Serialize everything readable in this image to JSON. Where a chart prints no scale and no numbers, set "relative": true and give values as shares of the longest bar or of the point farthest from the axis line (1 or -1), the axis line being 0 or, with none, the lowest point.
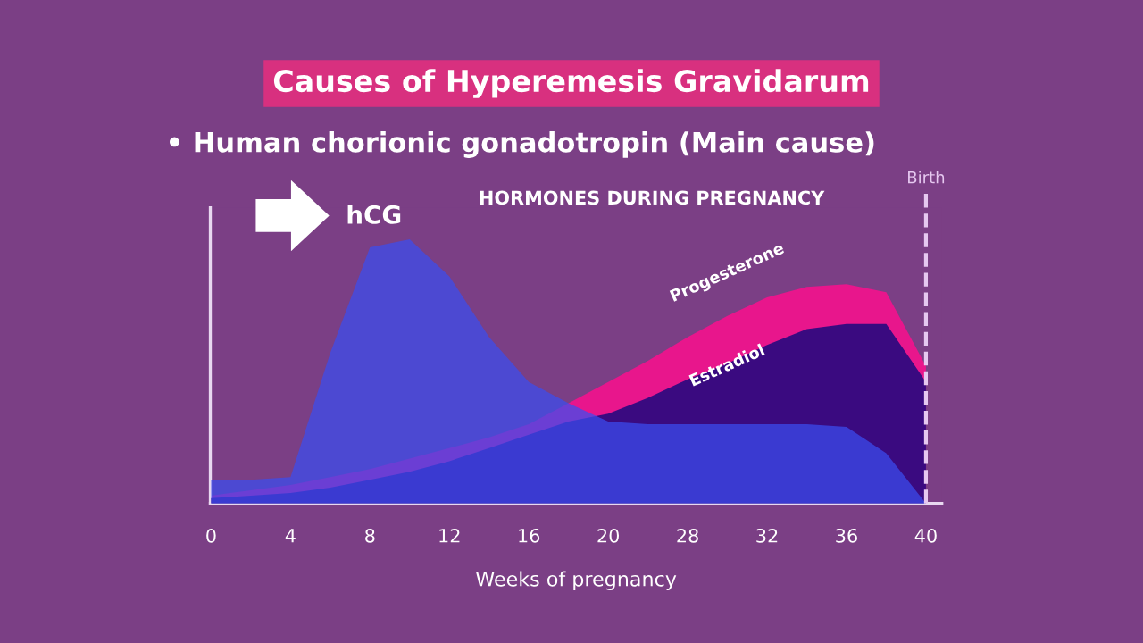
{
  "chart_data": {
    "type": "area",
    "title": "Causes of Hyperemesis Gravidarum",
    "subtitle": "• Human chorionic gonadotropin (Main cause)",
    "xlabel": "Weeks of pregnancy",
    "annotations": [
      "HORMONES DURING PREGNANCY"
    ],
    "relative": true,
    "categories": [
      "0",
      null,
      "4",
      null,
      "8",
      null,
      "12",
      null,
      "16",
      null,
      "20",
      null,
      "28",
      null,
      "32",
      null,
      "36",
      null,
      "40"
    ],
    "series": [
      {
        "name": "Progesterone",
        "color": "#e8168c",
        "values": [
          0.03,
          0.05,
          0.07,
          0.1,
          0.13,
          0.17,
          0.21,
          0.25,
          0.3,
          0.38,
          0.46,
          0.54,
          0.63,
          0.71,
          0.78,
          0.82,
          0.83,
          0.8,
          0.52
        ]
      },
      {
        "name": "Estradiol",
        "color": "#3a0a80",
        "values": [
          0.02,
          0.03,
          0.04,
          0.06,
          0.09,
          0.12,
          0.16,
          0.21,
          0.26,
          0.31,
          0.34,
          0.4,
          0.47,
          0.53,
          0.6,
          0.66,
          0.68,
          0.68,
          0.46
        ]
      },
      {
        "name": "hCG",
        "color": "#3a4ef0",
        "values": [
          0.09,
          0.09,
          0.1,
          0.57,
          0.97,
          1.0,
          0.86,
          0.63,
          0.46,
          0.38,
          0.31,
          0.3,
          0.3,
          0.3,
          0.3,
          0.3,
          0.29,
          0.19,
          0
        ]
      }
    ],
    "ref_lines": [
      {
        "axis": "x",
        "value": "40",
        "label": "Birth",
        "line_style": "dashed",
        "color": "#e6c8f0"
      }
    ],
    "legend": false,
    "grid": false
  }
}
